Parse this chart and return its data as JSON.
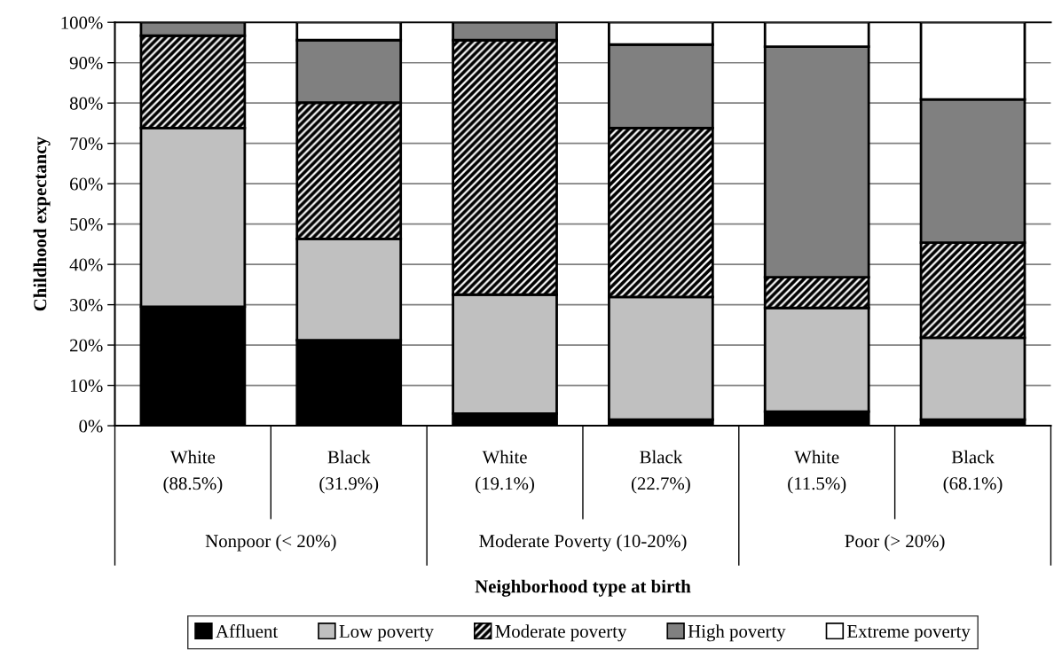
{
  "chart_data": {
    "type": "bar",
    "stacked": true,
    "categories": [
      "White\n(88.5%)",
      "Black\n(31.9%)",
      "White\n(19.1%)",
      "Black\n(22.7%)",
      "White\n(11.5%)",
      "Black\n(68.1%)"
    ],
    "annotations": [
      "Nonpoor (< 20%)",
      "Moderate Poverty (10-20%)",
      "Poor (> 20%)"
    ],
    "xlabel": "Neighborhood type at birth",
    "ylabel": "Childhood expectancy",
    "series": [
      {
        "name": "Affluent",
        "color": "#000000",
        "values": [
          29.5,
          21.2,
          3,
          1.5,
          3.5,
          1.5
        ]
      },
      {
        "name": "Low poverty",
        "color": "#c0c0c0",
        "values": [
          44.3,
          25.1,
          29.5,
          30.4,
          25.7,
          20.3
        ]
      },
      {
        "name": "Moderate poverty",
        "color": "#000000",
        "values": [
          22.9,
          33.8,
          63.1,
          41.9,
          7.6,
          23.6
        ]
      },
      {
        "name": "High poverty",
        "color": "#808080",
        "values": [
          3.3,
          15.5,
          4.4,
          20.7,
          57.2,
          35.5
        ]
      },
      {
        "name": "Extreme poverty",
        "color": "#ffffff",
        "values": [
          null,
          4.4,
          null,
          5.5,
          6.0,
          19.1
        ]
      }
    ],
    "ylim": [
      0,
      100
    ],
    "yticks": [
      {
        "value": 0,
        "label": "0%"
      },
      {
        "value": 10,
        "label": "10%"
      },
      {
        "value": 20,
        "label": "20%"
      },
      {
        "value": 30,
        "label": "30%"
      },
      {
        "value": 40,
        "label": "40%"
      },
      {
        "value": 50,
        "label": "50%"
      },
      {
        "value": 60,
        "label": "60%"
      },
      {
        "value": 70,
        "label": "70%"
      },
      {
        "value": 80,
        "label": "80%"
      },
      {
        "value": 90,
        "label": "90%"
      },
      {
        "value": 100,
        "label": "100%"
      }
    ],
    "grid": "y",
    "legend": "bottom"
  }
}
